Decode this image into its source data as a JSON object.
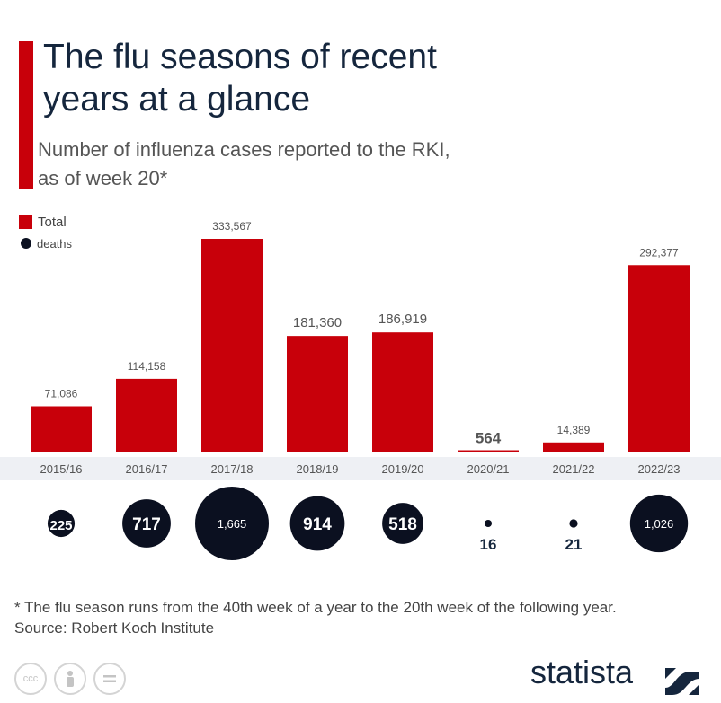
{
  "header": {
    "title": "The flu seasons of recent years at a glance",
    "subtitle": "Number of influenza cases reported to the RKI, as of week 20*"
  },
  "legend": {
    "total": "Total",
    "deaths": "deaths"
  },
  "chart_data": {
    "type": "bar",
    "categories": [
      "2015/16",
      "2016/17",
      "2017/18",
      "2018/19",
      "2019/20",
      "2020/21",
      "2021/22",
      "2022/23"
    ],
    "series": [
      {
        "name": "Total",
        "values": [
          71086,
          114158,
          333567,
          181360,
          186919,
          564,
          14389,
          292377
        ],
        "labels": [
          "71,086",
          "114,158",
          "333,567",
          "181,360",
          "186,919",
          "564",
          "14,389",
          "292,377"
        ]
      },
      {
        "name": "deaths",
        "values": [
          225,
          717,
          1665,
          914,
          518,
          16,
          21,
          1026
        ],
        "labels": [
          "225",
          "717",
          "1,665",
          "914",
          "518",
          "16",
          "21",
          "1,026"
        ]
      }
    ],
    "ylim": [
      0,
      333567
    ],
    "colors": {
      "bar": "#c8000a",
      "bubble": "#0b1020"
    }
  },
  "footer": {
    "footnote": "* The flu season runs from the 40th week of a year to the 20th week of the following year.",
    "source": "Source: Robert Koch Institute",
    "brand": "statista",
    "license_icons": [
      "cc-icon",
      "person-icon",
      "equals-icon"
    ]
  }
}
